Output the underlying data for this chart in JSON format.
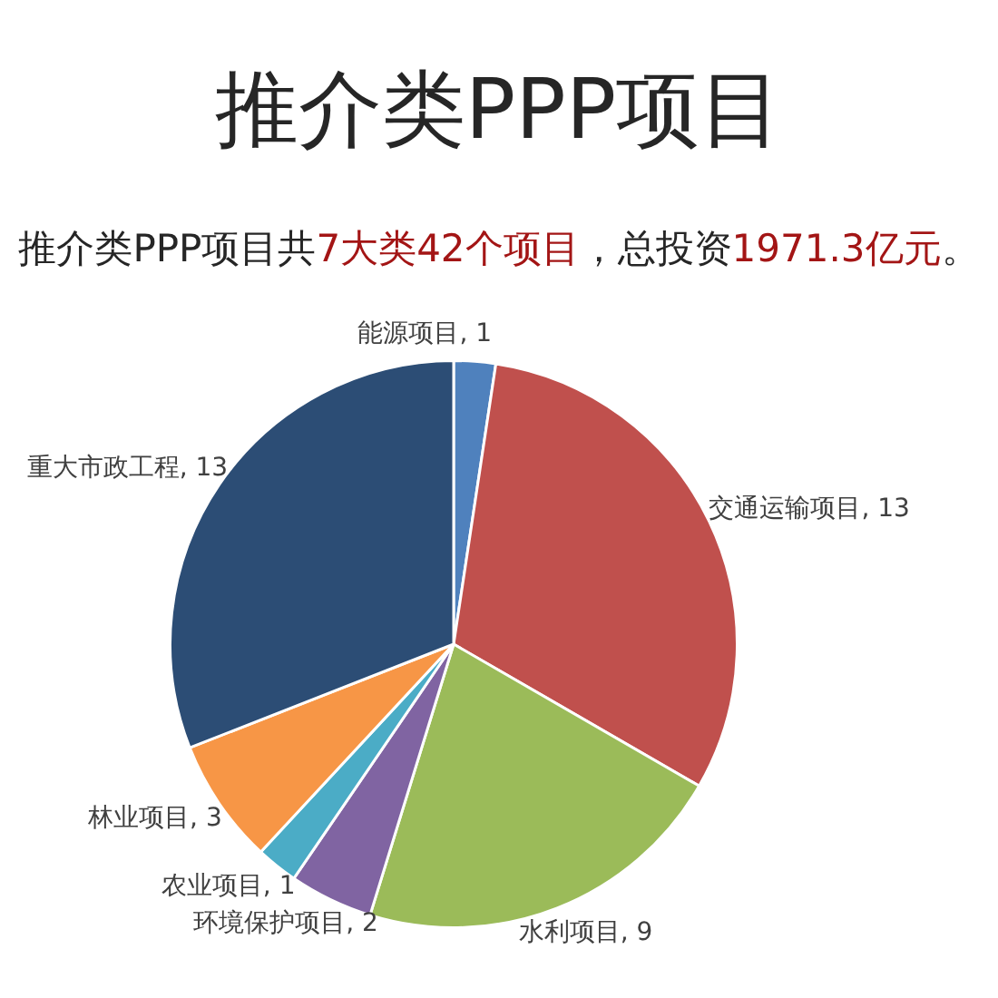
{
  "chart_data": {
    "type": "pie",
    "title": "推介类PPP项目",
    "subtitle": "推介类PPP项目共7大类42个项目，总投资1971.3亿元。",
    "categories": [
      "能源项目",
      "交通运输项目",
      "水利项目",
      "环境保护项目",
      "农业项目",
      "林业项目",
      "重大市政工程"
    ],
    "values": [
      1,
      13,
      9,
      2,
      1,
      3,
      13
    ],
    "value_labels": [
      ", 1",
      ", 13",
      ", 9",
      ", 2",
      ", 1",
      ", 3",
      ", 13"
    ],
    "colors": [
      "#4f81bd",
      "#c0504d",
      "#9bbb59",
      "#8064a2",
      "#4bacc6",
      "#f79646",
      "#2c4d75"
    ]
  }
}
